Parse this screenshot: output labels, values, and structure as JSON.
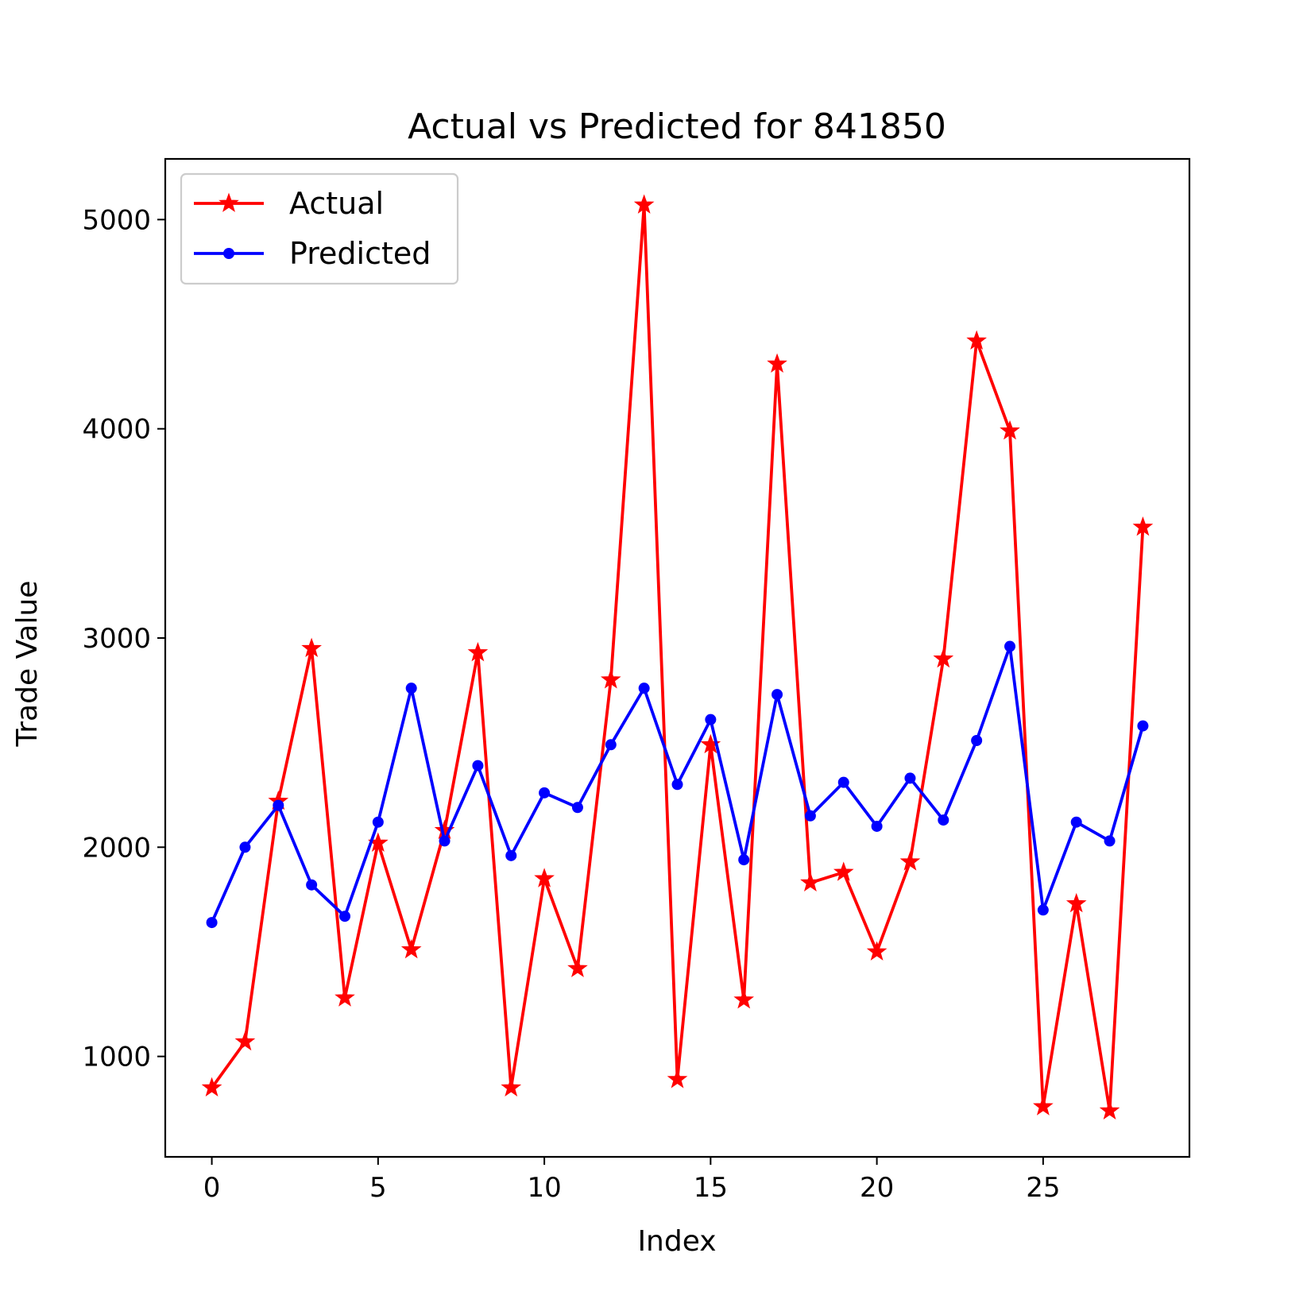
{
  "chart_data": {
    "type": "line",
    "title": "Actual vs Predicted for 841850",
    "xlabel": "Index",
    "ylabel": "Trade Value",
    "xlim": [
      -1.4,
      29.4
    ],
    "ylim": [
      520,
      5290
    ],
    "xticks": [
      0,
      5,
      10,
      15,
      20,
      25
    ],
    "yticks": [
      1000,
      2000,
      3000,
      4000,
      5000
    ],
    "grid": false,
    "legend_position": "upper-left",
    "x": [
      0,
      1,
      2,
      3,
      4,
      5,
      6,
      7,
      8,
      9,
      10,
      11,
      12,
      13,
      14,
      15,
      16,
      17,
      18,
      19,
      20,
      21,
      22,
      23,
      24,
      25,
      26,
      27,
      28
    ],
    "series": [
      {
        "name": "Actual",
        "color": "#ff0000",
        "marker": "star",
        "values": [
          850,
          1070,
          2220,
          2950,
          1280,
          2020,
          1510,
          2080,
          2930,
          850,
          1850,
          1420,
          2800,
          5070,
          890,
          2490,
          1270,
          4310,
          1830,
          1880,
          1500,
          1930,
          2900,
          4420,
          3990,
          760,
          1730,
          740,
          3530
        ]
      },
      {
        "name": "Predicted",
        "color": "#0000ff",
        "marker": "circle",
        "values": [
          1640,
          2000,
          2200,
          1820,
          1670,
          2120,
          2760,
          2030,
          2390,
          1960,
          2260,
          2190,
          2490,
          2760,
          2300,
          2610,
          1940,
          2730,
          2150,
          2310,
          2100,
          2330,
          2130,
          2510,
          2960,
          1700,
          2120,
          2030,
          2580
        ]
      }
    ]
  }
}
